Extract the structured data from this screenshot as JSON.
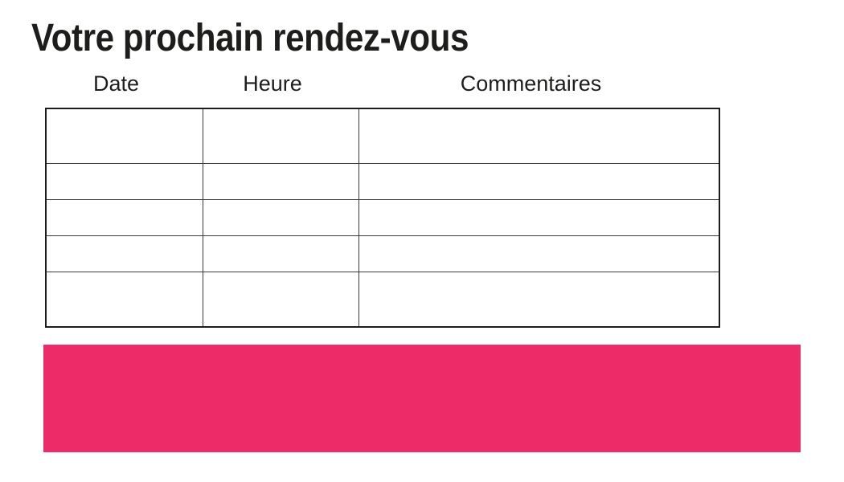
{
  "page": {
    "title": "Votre prochain rendez-vous"
  },
  "table": {
    "columns": [
      "Date",
      "Heure",
      "Commentaires"
    ],
    "rows": [
      [
        "",
        "",
        ""
      ],
      [
        "",
        "",
        ""
      ],
      [
        "",
        "",
        ""
      ],
      [
        "",
        "",
        ""
      ],
      [
        "",
        "",
        ""
      ]
    ]
  },
  "colors": {
    "accent_pink": "#ED2B68",
    "ink": "#1D1D1B",
    "grid_line": "#3A3A3A"
  }
}
